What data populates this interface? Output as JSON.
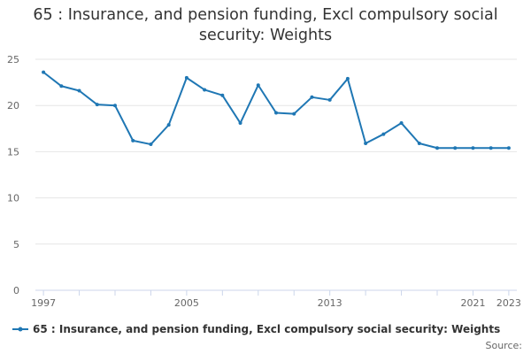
{
  "chart_data": {
    "type": "line",
    "title": "65 : Insurance, and pension funding, Excl compulsory social security: Weights",
    "xlabel": "",
    "ylabel": "",
    "x": [
      1997,
      1998,
      1999,
      2000,
      2001,
      2002,
      2003,
      2004,
      2005,
      2006,
      2007,
      2008,
      2009,
      2010,
      2011,
      2012,
      2013,
      2014,
      2015,
      2016,
      2017,
      2018,
      2019,
      2020,
      2021,
      2022,
      2023
    ],
    "x_tick_labels": [
      "1997",
      "2005",
      "2013",
      "2021",
      "2023"
    ],
    "y_ticks": [
      0,
      5,
      10,
      15,
      20,
      25
    ],
    "ylim": [
      0,
      25
    ],
    "xlim": [
      1997,
      2023
    ],
    "grid": true,
    "legend_position": "bottom-left",
    "series": [
      {
        "name": "65 : Insurance, and pension funding, Excl compulsory social security: Weights",
        "color": "#1f77b4",
        "values": [
          23.6,
          22.1,
          21.6,
          20.1,
          20.0,
          16.2,
          15.8,
          17.9,
          23.0,
          21.7,
          21.1,
          18.1,
          22.2,
          19.2,
          19.1,
          20.9,
          20.6,
          22.9,
          15.9,
          16.9,
          18.1,
          15.9,
          15.4,
          15.4,
          15.4,
          15.4,
          15.4
        ]
      }
    ]
  },
  "source_label": "Source:"
}
